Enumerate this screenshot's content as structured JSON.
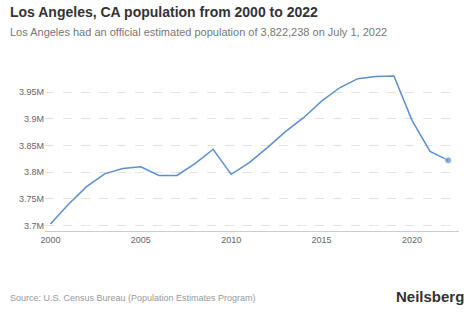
{
  "chart_data": {
    "type": "line",
    "title": "Los Angeles, CA population from 2000 to 2022",
    "subtitle": "Los Angeles had an official estimated population of 3,822,238 on July 1, 2022",
    "annotations": [
      "Source: U.S. Census Bureau (Population Estimates Program)",
      "Neilsberg"
    ],
    "x": [
      2000,
      2001,
      2002,
      2003,
      2004,
      2005,
      2006,
      2007,
      2008,
      2009,
      2010,
      2011,
      2012,
      2013,
      2014,
      2015,
      2016,
      2017,
      2018,
      2019,
      2020,
      2021,
      2022
    ],
    "series": [
      {
        "name": "Los Angeles",
        "color": "#5b8fd0",
        "marker": "last",
        "values": [
          3703000,
          3740000,
          3773000,
          3797000,
          3807000,
          3810000,
          3794000,
          3794000,
          3816000,
          3843000,
          3796000,
          3818000,
          3846000,
          3876000,
          3902000,
          3933000,
          3958000,
          3975000,
          3979000,
          3980000,
          3897000,
          3839000,
          3822238
        ]
      }
    ],
    "xlim": [
      1999.7,
      2022.6
    ],
    "xticks": [
      2000,
      2005,
      2010,
      2015,
      2020
    ],
    "ylim": [
      3690000,
      3995000
    ],
    "yticks": [
      {
        "value": 3700000,
        "label": "3.7M"
      },
      {
        "value": 3750000,
        "label": "3.75M"
      },
      {
        "value": 3800000,
        "label": "3.8M"
      },
      {
        "value": 3850000,
        "label": "3.85M"
      },
      {
        "value": 3900000,
        "label": "3.9M"
      },
      {
        "value": 3950000,
        "label": "3.95M"
      }
    ],
    "grid": true
  }
}
